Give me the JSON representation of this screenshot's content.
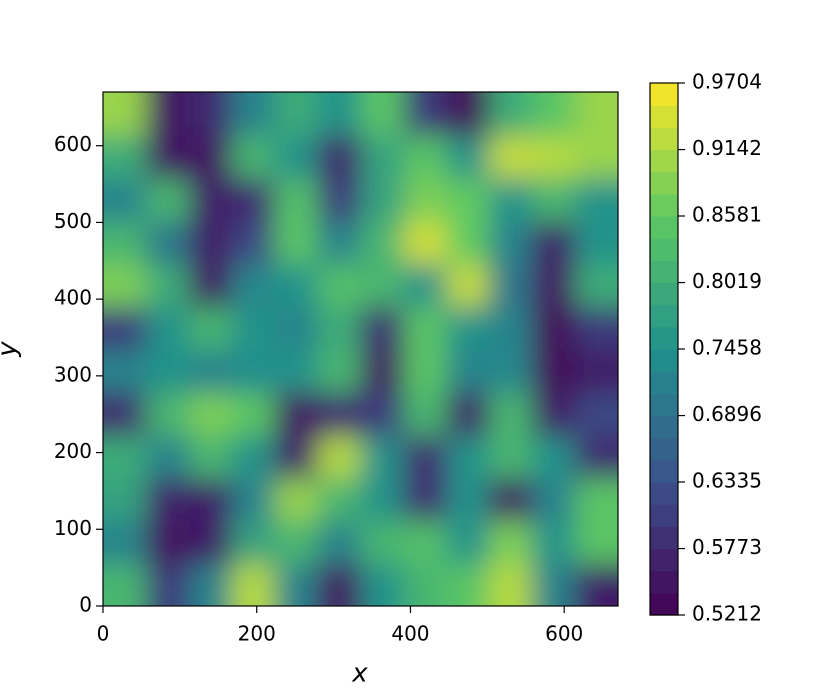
{
  "chart_data": {
    "type": "contourf",
    "xlabel": "x",
    "ylabel": "y",
    "colormap": "viridis",
    "xlim": [
      0,
      670
    ],
    "ylim": [
      0,
      670
    ],
    "xticks": [
      0,
      200,
      400,
      600
    ],
    "yticks": [
      0,
      100,
      200,
      300,
      400,
      500,
      600
    ],
    "clim": [
      0.5212,
      0.9704
    ],
    "cticks": [
      0.5212,
      0.5773,
      0.6335,
      0.6896,
      0.7458,
      0.8019,
      0.8581,
      0.9142,
      0.9704
    ],
    "x": [
      28,
      84,
      140,
      195,
      251,
      307,
      363,
      419,
      475,
      530,
      586,
      642
    ],
    "y": [
      28,
      84,
      140,
      195,
      251,
      307,
      363,
      419,
      475,
      530,
      586,
      642
    ],
    "z": [
      [
        0.82,
        0.6,
        0.72,
        0.92,
        0.72,
        0.55,
        0.75,
        0.82,
        0.85,
        0.92,
        0.72,
        0.56
      ],
      [
        0.72,
        0.54,
        0.56,
        0.78,
        0.82,
        0.72,
        0.82,
        0.84,
        0.75,
        0.88,
        0.75,
        0.85
      ],
      [
        0.78,
        0.57,
        0.56,
        0.72,
        0.9,
        0.82,
        0.75,
        0.58,
        0.75,
        0.55,
        0.72,
        0.85
      ],
      [
        0.8,
        0.72,
        0.82,
        0.75,
        0.56,
        0.92,
        0.75,
        0.58,
        0.75,
        0.82,
        0.75,
        0.58
      ],
      [
        0.58,
        0.82,
        0.88,
        0.85,
        0.55,
        0.58,
        0.6,
        0.82,
        0.56,
        0.82,
        0.56,
        0.62
      ],
      [
        0.72,
        0.75,
        0.72,
        0.74,
        0.75,
        0.82,
        0.55,
        0.85,
        0.72,
        0.73,
        0.53,
        0.56
      ],
      [
        0.6,
        0.75,
        0.82,
        0.75,
        0.72,
        0.8,
        0.58,
        0.85,
        0.75,
        0.72,
        0.53,
        0.6
      ],
      [
        0.88,
        0.8,
        0.55,
        0.73,
        0.75,
        0.84,
        0.82,
        0.75,
        0.93,
        0.7,
        0.55,
        0.8
      ],
      [
        0.82,
        0.7,
        0.56,
        0.62,
        0.85,
        0.72,
        0.82,
        0.94,
        0.86,
        0.72,
        0.56,
        0.75
      ],
      [
        0.72,
        0.82,
        0.56,
        0.58,
        0.84,
        0.6,
        0.78,
        0.88,
        0.86,
        0.75,
        0.82,
        0.75
      ],
      [
        0.8,
        0.55,
        0.55,
        0.82,
        0.75,
        0.57,
        0.78,
        0.85,
        0.75,
        0.93,
        0.92,
        0.9
      ],
      [
        0.9,
        0.55,
        0.58,
        0.72,
        0.8,
        0.75,
        0.85,
        0.6,
        0.53,
        0.8,
        0.85,
        0.9
      ]
    ]
  }
}
